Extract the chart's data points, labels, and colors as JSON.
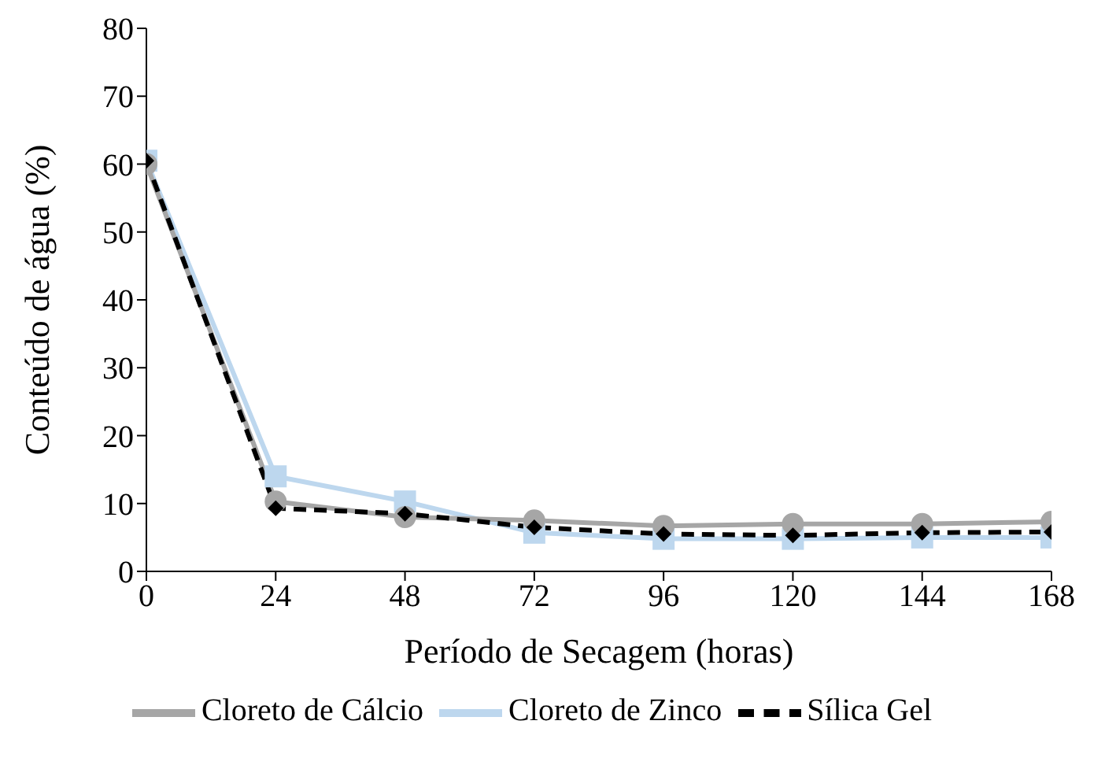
{
  "chart_data": {
    "type": "line",
    "xlabel": "Período de Secagem (horas)",
    "ylabel": "Conteúdo de água (%)",
    "x": [
      0,
      24,
      48,
      72,
      96,
      120,
      144,
      168
    ],
    "xlim": [
      0,
      168
    ],
    "xticks": [
      0,
      24,
      48,
      72,
      96,
      120,
      144,
      168
    ],
    "ylim": [
      0,
      80
    ],
    "yticks": [
      0,
      10,
      20,
      30,
      40,
      50,
      60,
      70,
      80
    ],
    "grid": false,
    "legend": "bottom",
    "series": [
      {
        "name": "Sílica Gel",
        "color": "#000000",
        "marker": "diamond",
        "line_style": "dashed",
        "values": [
          60.5,
          9.3,
          8.5,
          6.5,
          5.5,
          5.3,
          5.7,
          5.8
        ]
      },
      {
        "name": "Cloreto de Cálcio",
        "color": "#a6a6a6",
        "marker": "circle",
        "line_style": "solid",
        "values": [
          60,
          10.3,
          8,
          7.5,
          6.7,
          7,
          7,
          7.3
        ]
      },
      {
        "name": "Cloreto de Zinco",
        "color": "#bdd7ee",
        "marker": "square",
        "line_style": "solid",
        "values": [
          60.5,
          14,
          10.3,
          5.7,
          4.8,
          4.8,
          5,
          5
        ]
      }
    ]
  }
}
